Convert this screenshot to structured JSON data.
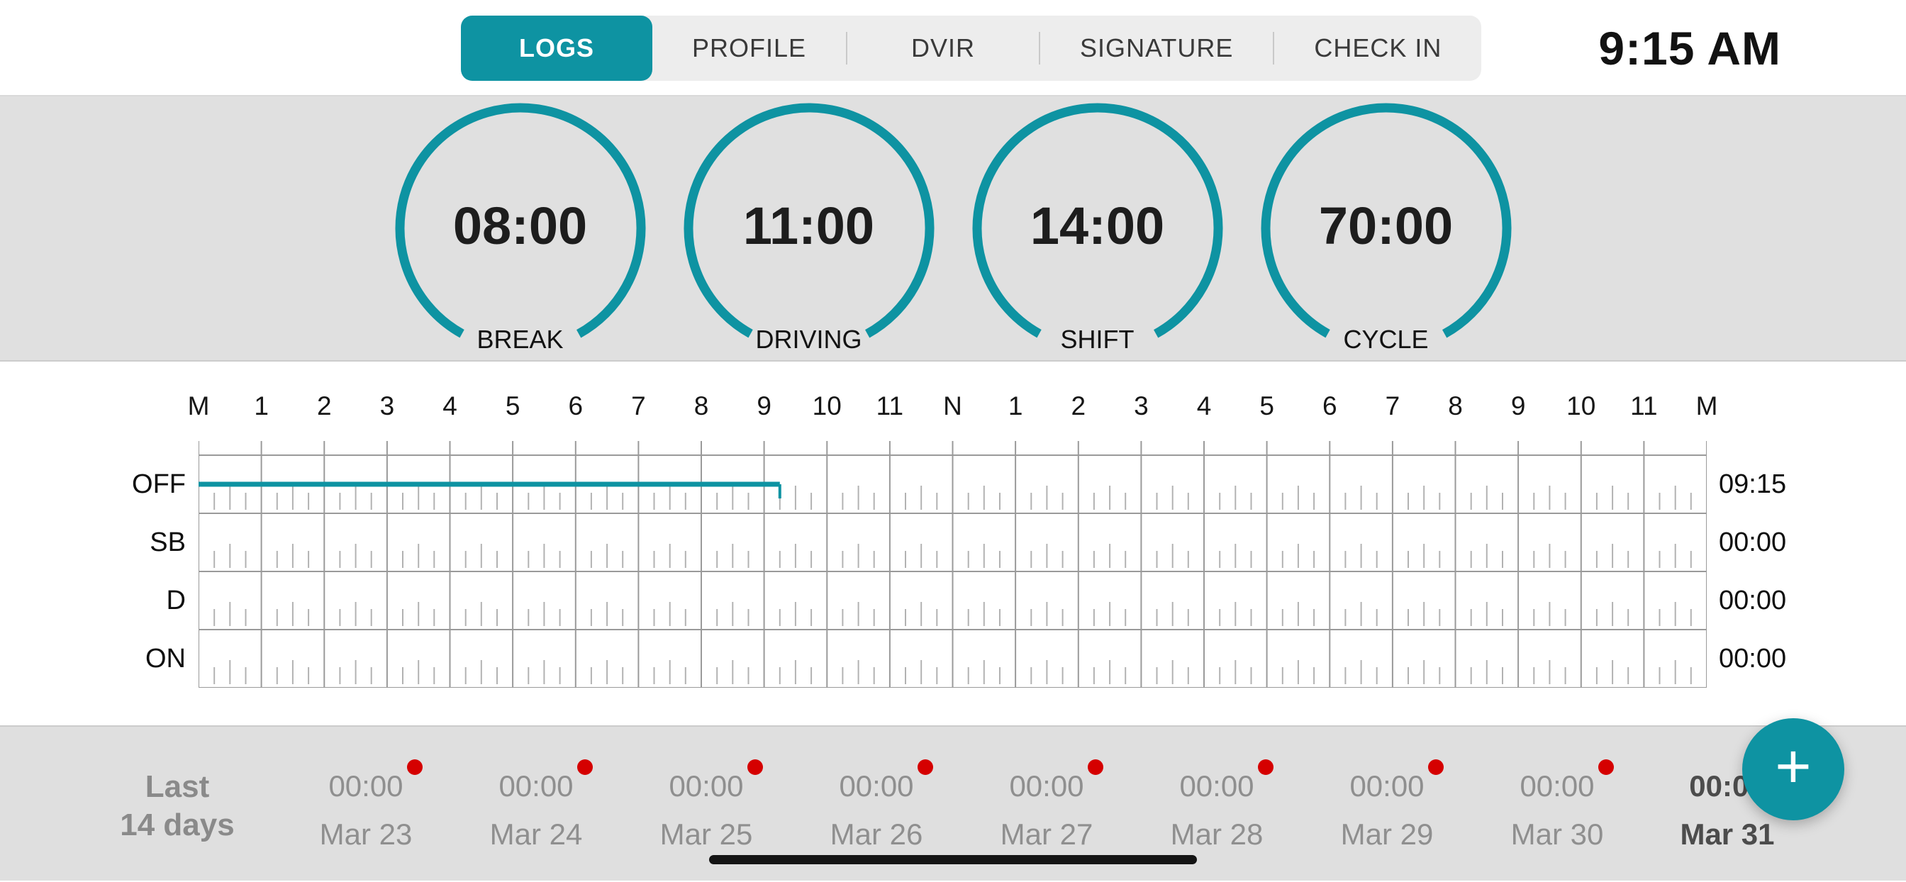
{
  "colors": {
    "accent": "#0e93a2",
    "alert": "#d50000",
    "grid_line": "#9a9a9a",
    "grid_tick": "#b2b2b2"
  },
  "header": {
    "clock": "9:15 AM",
    "tabs": [
      {
        "label": "LOGS",
        "active": true
      },
      {
        "label": "PROFILE",
        "active": false
      },
      {
        "label": "DVIR",
        "active": false
      },
      {
        "label": "SIGNATURE",
        "active": false
      },
      {
        "label": "CHECK IN",
        "active": false
      }
    ]
  },
  "gauges": [
    {
      "value": "08:00",
      "label": "BREAK"
    },
    {
      "value": "11:00",
      "label": "DRIVING"
    },
    {
      "value": "14:00",
      "label": "SHIFT"
    },
    {
      "value": "70:00",
      "label": "CYCLE"
    }
  ],
  "log_grid": {
    "hour_labels": [
      "M",
      "1",
      "2",
      "3",
      "4",
      "5",
      "6",
      "7",
      "8",
      "9",
      "10",
      "11",
      "N",
      "1",
      "2",
      "3",
      "4",
      "5",
      "6",
      "7",
      "8",
      "9",
      "10",
      "11",
      "M"
    ],
    "rows": [
      {
        "label": "OFF",
        "total": "09:15"
      },
      {
        "label": "SB",
        "total": "00:00"
      },
      {
        "label": "D",
        "total": "00:00"
      },
      {
        "label": "ON",
        "total": "00:00"
      }
    ],
    "segments": [
      {
        "row": 0,
        "start_hour": 0,
        "end_hour": 9.25
      }
    ]
  },
  "history": {
    "label_line1": "Last",
    "label_line2": "14 days",
    "days": [
      {
        "date": "Mar 23",
        "value": "00:00",
        "alert": true,
        "active": false
      },
      {
        "date": "Mar 24",
        "value": "00:00",
        "alert": true,
        "active": false
      },
      {
        "date": "Mar 25",
        "value": "00:00",
        "alert": true,
        "active": false
      },
      {
        "date": "Mar 26",
        "value": "00:00",
        "alert": true,
        "active": false
      },
      {
        "date": "Mar 27",
        "value": "00:00",
        "alert": true,
        "active": false
      },
      {
        "date": "Mar 28",
        "value": "00:00",
        "alert": true,
        "active": false
      },
      {
        "date": "Mar 29",
        "value": "00:00",
        "alert": true,
        "active": false
      },
      {
        "date": "Mar 30",
        "value": "00:00",
        "alert": true,
        "active": false
      },
      {
        "date": "Mar 31",
        "value": "00:00",
        "alert": true,
        "active": true
      }
    ]
  },
  "fab_label": "+"
}
